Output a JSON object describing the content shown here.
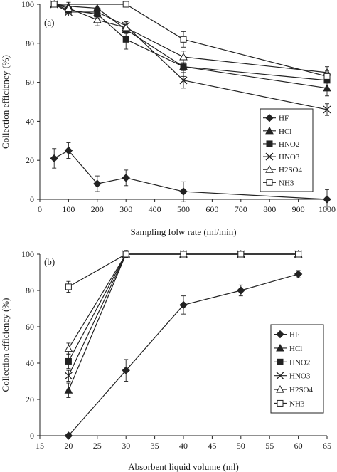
{
  "chart_data": [
    {
      "type": "line",
      "panel_label": "(a)",
      "title": "",
      "xlabel": "Sampling folw rate (ml/min)",
      "ylabel": "Collection efficiency (%)",
      "xlim": [
        0,
        1000
      ],
      "ylim": [
        0,
        100
      ],
      "xticks": [
        0,
        100,
        200,
        300,
        400,
        500,
        600,
        700,
        800,
        900,
        1000
      ],
      "yticks": [
        0,
        20,
        40,
        60,
        80,
        100
      ],
      "grid": false,
      "legend_position": "right",
      "series": [
        {
          "name": "HF",
          "marker": "diamond",
          "x": [
            50,
            100,
            200,
            300,
            500,
            1000
          ],
          "y": [
            21,
            25,
            8,
            11,
            4,
            0
          ],
          "err": [
            5,
            4,
            4,
            4,
            5,
            5
          ]
        },
        {
          "name": "HCl",
          "marker": "triangle-filled",
          "x": [
            50,
            100,
            200,
            300,
            500,
            1000
          ],
          "y": [
            100,
            99,
            98,
            87,
            68,
            57
          ],
          "err": [
            0,
            2,
            2,
            2,
            2,
            4
          ]
        },
        {
          "name": "HNO2",
          "marker": "square-filled",
          "x": [
            50,
            100,
            200,
            300,
            500,
            1000
          ],
          "y": [
            100,
            97,
            95,
            82,
            68,
            61
          ],
          "err": [
            0,
            2,
            2,
            5,
            5,
            4
          ]
        },
        {
          "name": "HNO3",
          "marker": "cross",
          "x": [
            50,
            100,
            200,
            300,
            500,
            1000
          ],
          "y": [
            100,
            96,
            96,
            89,
            61,
            46
          ],
          "err": [
            0,
            2,
            2,
            2,
            4,
            3
          ]
        },
        {
          "name": "H2SO4",
          "marker": "triangle-open",
          "x": [
            50,
            100,
            200,
            300,
            500,
            1000
          ],
          "y": [
            100,
            98,
            92,
            88,
            73,
            65
          ],
          "err": [
            0,
            2,
            3,
            3,
            3,
            3
          ]
        },
        {
          "name": "NH3",
          "marker": "square-open",
          "x": [
            50,
            300,
            500,
            1000
          ],
          "y": [
            100,
            100,
            82,
            63
          ],
          "err": [
            0,
            0,
            4,
            3
          ]
        }
      ]
    },
    {
      "type": "line",
      "panel_label": "(b)",
      "title": "",
      "xlabel": "Absorbent liquid volume (ml)",
      "ylabel": "Collection efficiency (%)",
      "xlim": [
        15,
        65
      ],
      "ylim": [
        0,
        100
      ],
      "xticks": [
        15,
        20,
        25,
        30,
        35,
        40,
        45,
        50,
        55,
        60,
        65
      ],
      "yticks": [
        0,
        20,
        40,
        60,
        80,
        100
      ],
      "grid": false,
      "legend_position": "right",
      "series": [
        {
          "name": "HF",
          "marker": "diamond",
          "x": [
            20,
            30,
            40,
            50,
            60
          ],
          "y": [
            0,
            36,
            72,
            80,
            89
          ],
          "err": [
            0,
            6,
            5,
            3,
            2
          ]
        },
        {
          "name": "HCl",
          "marker": "triangle-filled",
          "x": [
            20,
            30,
            40,
            50,
            60
          ],
          "y": [
            25,
            100,
            100,
            100,
            100
          ],
          "err": [
            4,
            2,
            1,
            0,
            0
          ]
        },
        {
          "name": "HNO2",
          "marker": "square-filled",
          "x": [
            20,
            30,
            40,
            50,
            60
          ],
          "y": [
            41,
            100,
            100,
            100,
            100
          ],
          "err": [
            4,
            2,
            1,
            0,
            0
          ]
        },
        {
          "name": "HNO3",
          "marker": "cross",
          "x": [
            20,
            30,
            40,
            50,
            60
          ],
          "y": [
            33,
            100,
            100,
            100,
            100
          ],
          "err": [
            3,
            2,
            1,
            0,
            0
          ]
        },
        {
          "name": "H2SO4",
          "marker": "triangle-open",
          "x": [
            20,
            30,
            40,
            50,
            60
          ],
          "y": [
            48,
            100,
            100,
            100,
            100
          ],
          "err": [
            3,
            2,
            1,
            0,
            0
          ]
        },
        {
          "name": "NH3",
          "marker": "square-open",
          "x": [
            20,
            30,
            40,
            50,
            60
          ],
          "y": [
            82,
            100,
            100,
            100,
            100
          ],
          "err": [
            3,
            2,
            1,
            0,
            0
          ]
        }
      ]
    }
  ]
}
